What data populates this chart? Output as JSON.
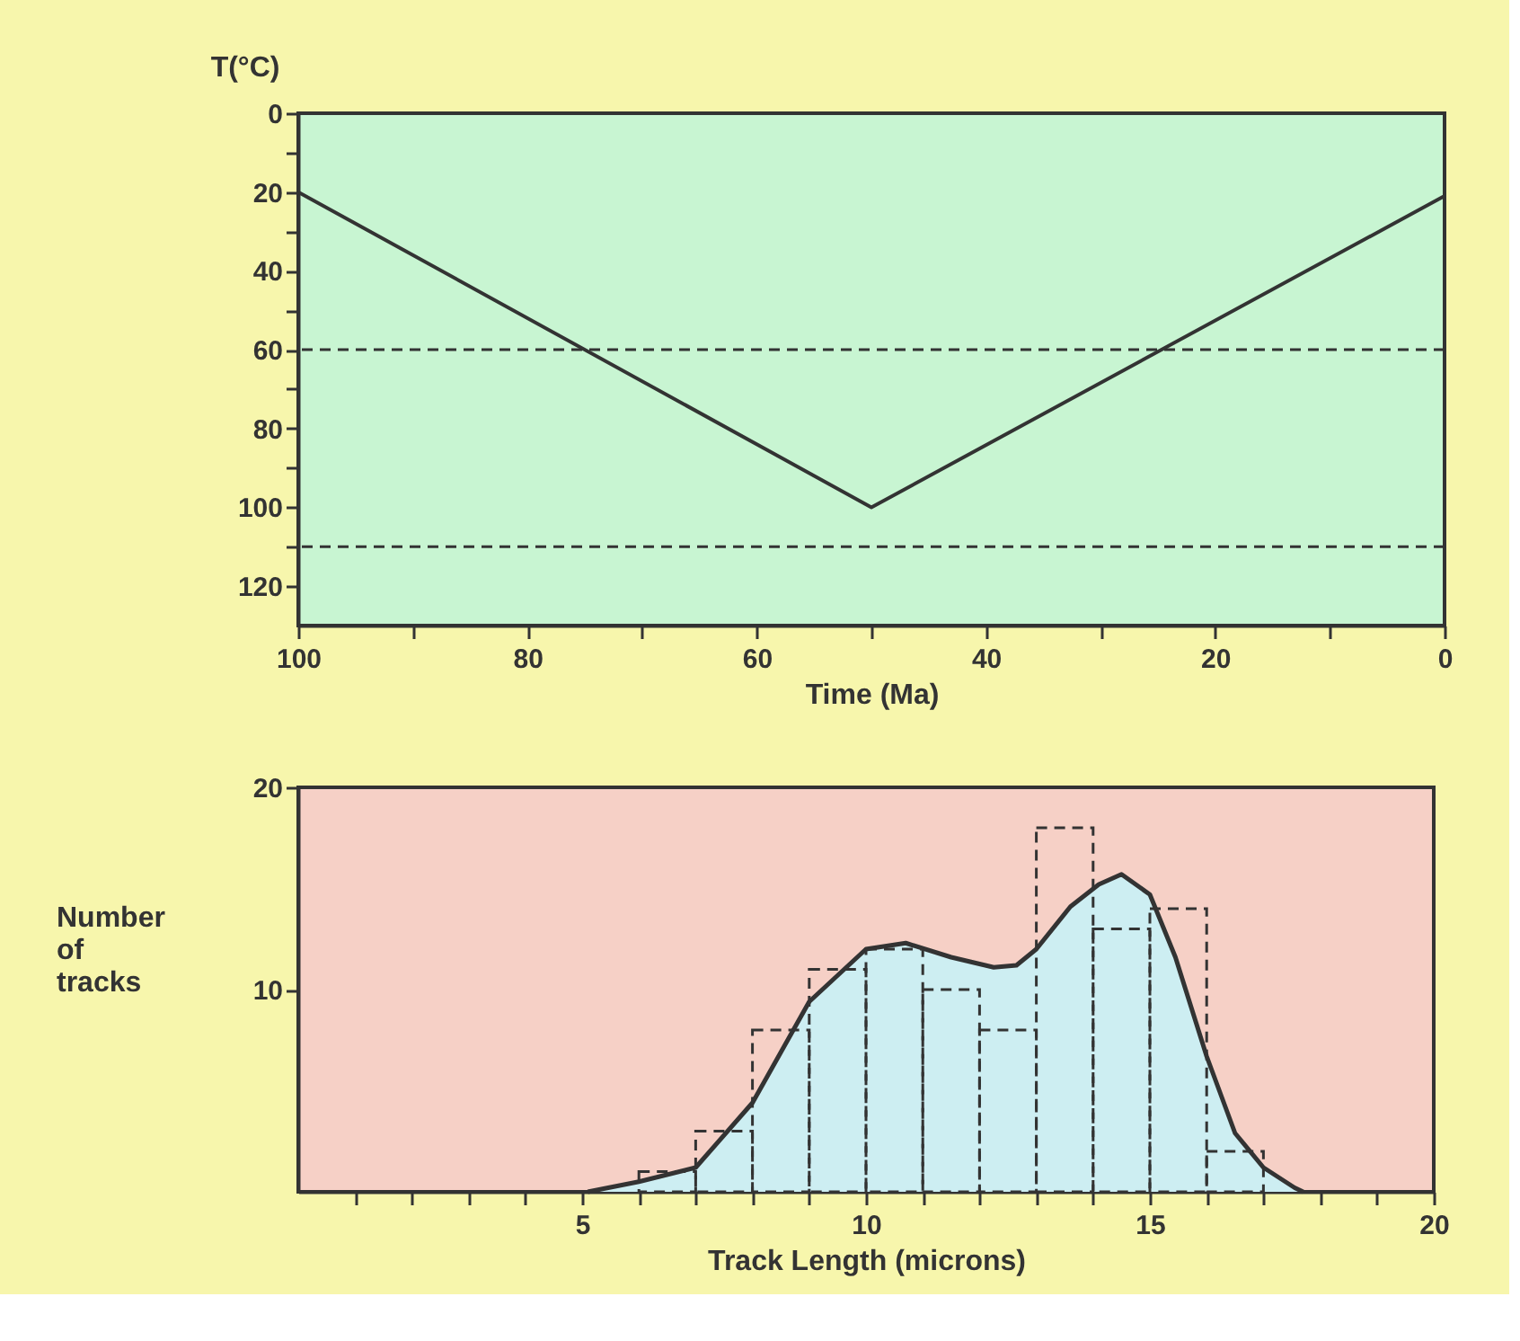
{
  "chart_data": [
    {
      "type": "line",
      "xlabel": "Time (Ma)",
      "ylabel": "T(°C)",
      "xlim": [
        100,
        0
      ],
      "ylim": [
        130,
        0
      ],
      "xticks": [
        100,
        {
          "value": 90,
          "label": null
        },
        80,
        {
          "value": 70,
          "label": null
        },
        60,
        {
          "value": 50,
          "label": null
        },
        40,
        {
          "value": 30,
          "label": null
        },
        20,
        {
          "value": 10,
          "label": null
        },
        0
      ],
      "yticks": [
        0,
        {
          "value": 10,
          "label": null
        },
        20,
        {
          "value": 30,
          "label": null
        },
        40,
        {
          "value": 50,
          "label": null
        },
        60,
        {
          "value": 70,
          "label": null
        },
        80,
        {
          "value": 90,
          "label": null
        },
        100,
        {
          "value": 110,
          "label": null
        },
        120
      ],
      "series": [
        {
          "color": "#333333",
          "x": [
            100,
            50,
            0
          ],
          "values": [
            20,
            100,
            21
          ]
        }
      ],
      "ref_lines": [
        {
          "axis": "y",
          "value": 60,
          "color": "#333333",
          "line_style": "dashed"
        },
        {
          "axis": "y",
          "value": 110,
          "color": "#333333",
          "line_style": "dashed"
        }
      ]
    },
    {
      "type": "histogram",
      "xlabel": "Track Length (microns)",
      "ylabel": "Number of tracks",
      "xlim": [
        0,
        20
      ],
      "ylim": [
        0,
        20
      ],
      "xticks": [
        {
          "value": 1,
          "label": null
        },
        {
          "value": 2,
          "label": null
        },
        {
          "value": 3,
          "label": null
        },
        {
          "value": 4,
          "label": null
        },
        5,
        {
          "value": 6,
          "label": null
        },
        {
          "value": 7,
          "label": null
        },
        {
          "value": 8,
          "label": null
        },
        {
          "value": 9,
          "label": null
        },
        10,
        {
          "value": 11,
          "label": null
        },
        {
          "value": 12,
          "label": null
        },
        {
          "value": 13,
          "label": null
        },
        {
          "value": 14,
          "label": null
        },
        15,
        {
          "value": 16,
          "label": null
        },
        {
          "value": 17,
          "label": null
        },
        {
          "value": 18,
          "label": null
        },
        {
          "value": 19,
          "label": null
        },
        20
      ],
      "yticks": [
        10,
        20
      ],
      "bins": [
        6,
        7,
        8,
        9,
        10,
        11,
        12,
        13,
        14,
        15,
        16,
        17
      ],
      "values": [
        1,
        3,
        8,
        11,
        12,
        10,
        8,
        18,
        13,
        14,
        2
      ],
      "line_style": "dashed",
      "series": [
        {
          "type": "area",
          "color": "#cdeef2",
          "x": [
            5.1,
            6,
            7,
            8,
            9,
            10,
            10.7,
            11.5,
            12.25,
            12.65,
            13,
            13.6,
            14.1,
            14.5,
            15,
            15.45,
            16,
            16.5,
            17,
            17.55,
            17.7
          ],
          "values": [
            0,
            0.5,
            1.2,
            4.4,
            9.4,
            12.0,
            12.3,
            11.6,
            11.1,
            11.2,
            12.0,
            14.1,
            15.2,
            15.7,
            14.7,
            11.6,
            6.7,
            2.9,
            1.2,
            0.2,
            0
          ]
        }
      ]
    }
  ]
}
